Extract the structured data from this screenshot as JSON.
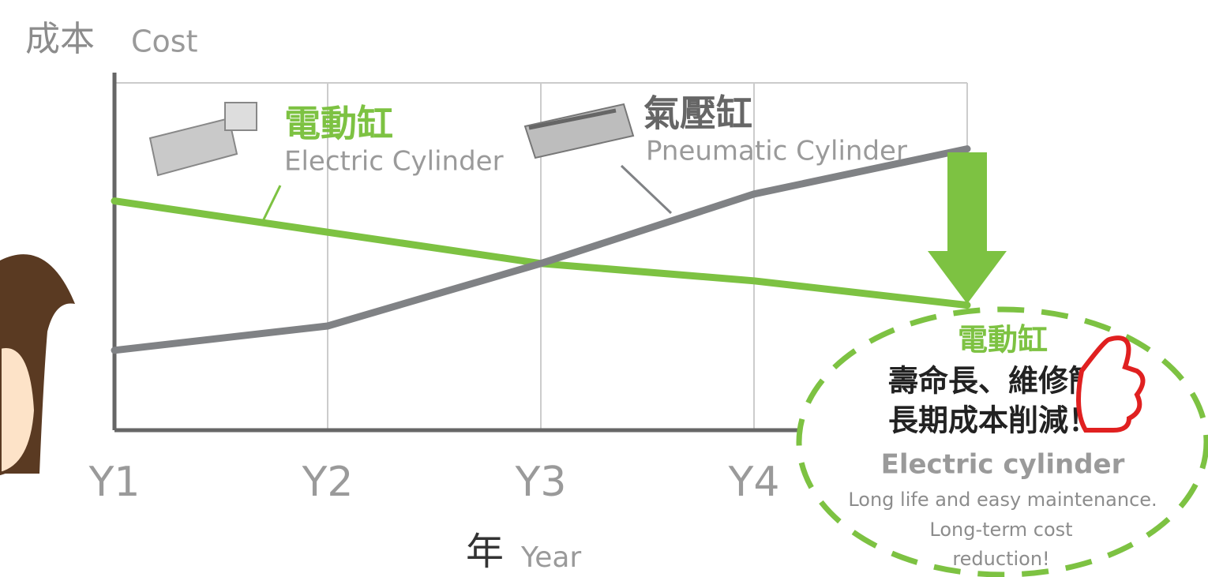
{
  "chart_data": {
    "type": "line",
    "ylabel": {
      "zh": "成本",
      "en": "Cost"
    },
    "xlabel": {
      "zh": "年",
      "en": "Year"
    },
    "categories": [
      "Y1",
      "Y2",
      "Y3",
      "Y4",
      null
    ],
    "ylim": [
      0,
      100
    ],
    "grid": true,
    "series": [
      {
        "name": "電動缸",
        "name_en": "Electric Cylinder",
        "color": "#7dc242",
        "values": [
          66,
          57,
          48,
          43,
          36
        ]
      },
      {
        "name": "氣壓缸",
        "name_en": "Pneumatic Cylinder",
        "color": "#808285",
        "values": [
          23,
          30,
          48,
          68,
          81
        ]
      }
    ],
    "callout": {
      "title": "電動缸",
      "lines_zh": [
        "壽命長、維修簡",
        "長期成本削減！"
      ],
      "title_en": "Electric cylinder",
      "lines_en": [
        "Long life and easy maintenance.",
        "Long-term cost",
        "reduction!"
      ]
    }
  }
}
